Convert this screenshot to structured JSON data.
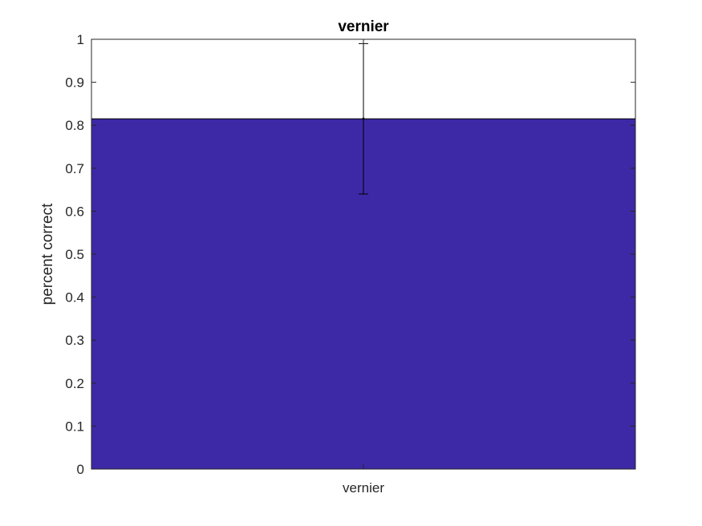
{
  "chart_data": {
    "type": "bar",
    "title": "vernier",
    "xlabel": "",
    "ylabel": "percent correct",
    "categories": [
      "vernier"
    ],
    "values": [
      0.815
    ],
    "error_low": [
      0.64
    ],
    "error_high": [
      0.99
    ],
    "ylim": [
      0,
      1
    ],
    "yticks": [
      "0",
      "0.1",
      "0.2",
      "0.3",
      "0.4",
      "0.5",
      "0.6",
      "0.7",
      "0.8",
      "0.9",
      "1"
    ],
    "grid": false,
    "bar_color": "#3d28a6"
  }
}
